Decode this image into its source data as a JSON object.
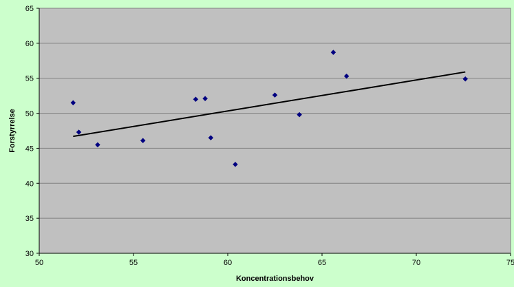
{
  "colors": {
    "page_background": "#ccffcc",
    "plot_background": "#c0c0c0",
    "gridline": "#808080",
    "marker": "#000080",
    "trendline": "#000000"
  },
  "chart_data": {
    "type": "scatter",
    "title": "",
    "xlabel": "Koncentrationsbehov",
    "ylabel": "Forstyrrelse",
    "xlim": [
      50,
      75
    ],
    "ylim": [
      30,
      65
    ],
    "x_ticks": [
      "50",
      "55",
      "60",
      "65",
      "70",
      "75"
    ],
    "y_ticks": [
      "30",
      "35",
      "40",
      "45",
      "50",
      "55",
      "60",
      "65"
    ],
    "grid": "horizontal",
    "legend": "none",
    "marker": "diamond",
    "points": [
      {
        "x": 51.8,
        "y": 51.5
      },
      {
        "x": 52.1,
        "y": 47.3
      },
      {
        "x": 53.1,
        "y": 45.5
      },
      {
        "x": 55.5,
        "y": 46.1
      },
      {
        "x": 58.3,
        "y": 52.0
      },
      {
        "x": 58.8,
        "y": 52.1
      },
      {
        "x": 59.1,
        "y": 46.5
      },
      {
        "x": 60.4,
        "y": 42.7
      },
      {
        "x": 62.5,
        "y": 52.6
      },
      {
        "x": 63.8,
        "y": 49.8
      },
      {
        "x": 65.6,
        "y": 58.7
      },
      {
        "x": 66.3,
        "y": 55.3
      },
      {
        "x": 72.6,
        "y": 54.9
      }
    ],
    "trendline": {
      "type": "linear",
      "x": [
        51.8,
        72.6
      ],
      "y": [
        46.7,
        55.9
      ]
    }
  }
}
